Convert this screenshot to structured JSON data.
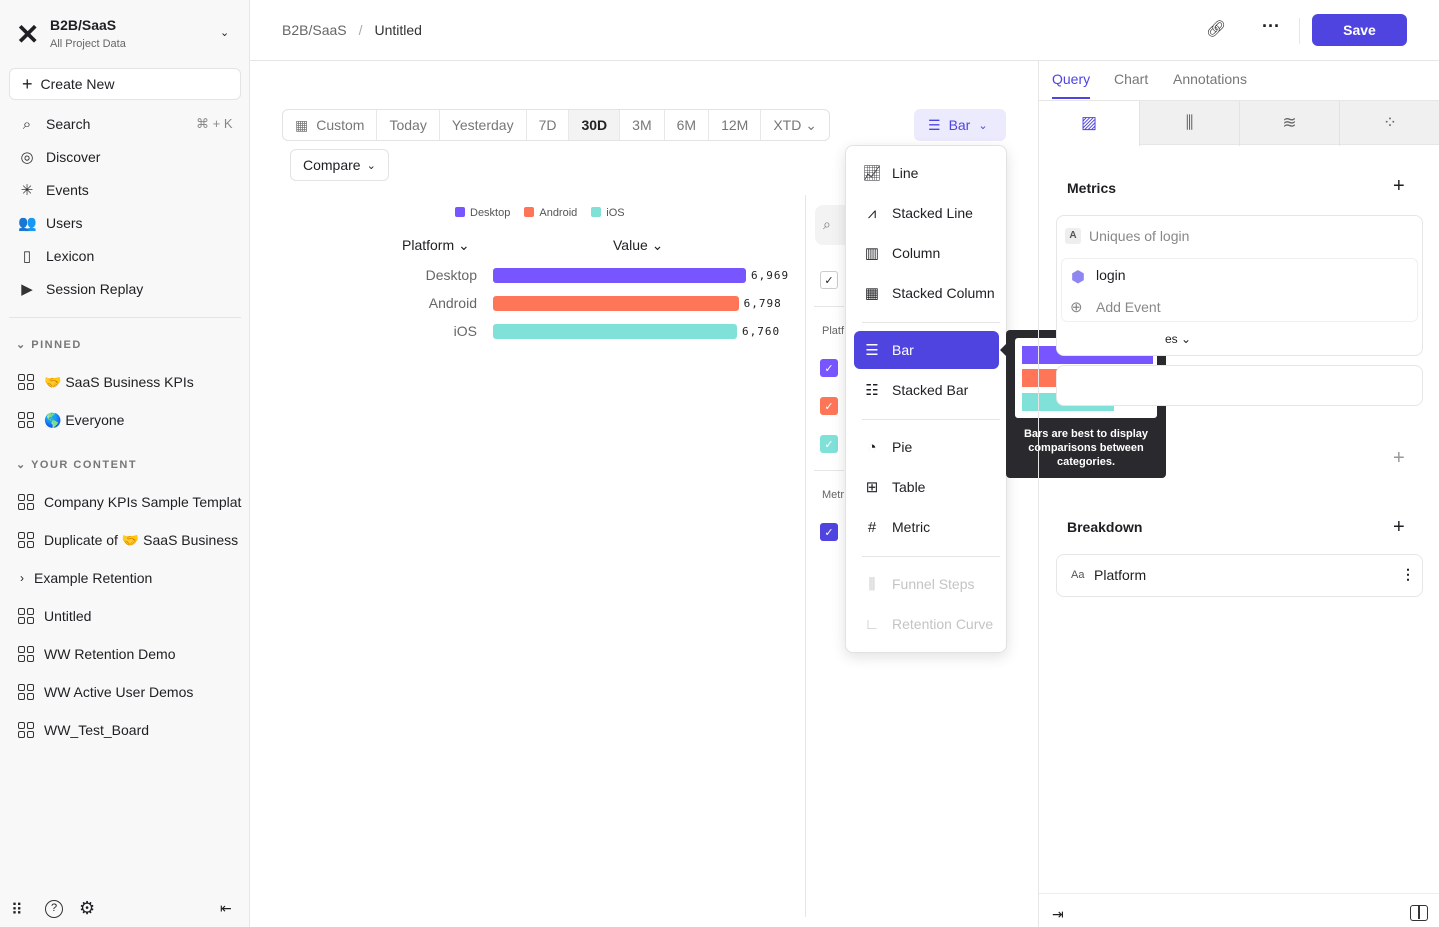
{
  "sidebar": {
    "project": "B2B/SaaS",
    "subtitle": "All Project Data",
    "create_new": "Create New",
    "nav": [
      {
        "label": "Search",
        "shortcut": "⌘ + K",
        "icon": "search-icon"
      },
      {
        "label": "Discover",
        "icon": "compass-icon"
      },
      {
        "label": "Events",
        "icon": "sparkle-icon"
      },
      {
        "label": "Users",
        "icon": "users-icon"
      },
      {
        "label": "Lexicon",
        "icon": "book-icon"
      },
      {
        "label": "Session Replay",
        "icon": "replay-icon"
      }
    ],
    "pinned_title": "PINNED",
    "pinned": [
      {
        "emoji": "🤝",
        "label": "SaaS Business KPIs"
      },
      {
        "emoji": "🌎",
        "label": "Everyone"
      }
    ],
    "content_title": "YOUR CONTENT",
    "content": [
      {
        "label": "Company KPIs Sample Templat"
      },
      {
        "label": "Duplicate of",
        "emoji": "🤝",
        "suffix": "SaaS Business"
      },
      {
        "label": "Example Retention",
        "type": "folder"
      },
      {
        "label": "Untitled"
      },
      {
        "label": "WW Retention Demo"
      },
      {
        "label": "WW Active User Demos"
      },
      {
        "label": "WW_Test_Board"
      }
    ]
  },
  "header": {
    "breadcrumb": [
      "B2B/SaaS",
      "Untitled"
    ],
    "save": "Save",
    "accent": "#4f44e0"
  },
  "toolbar": {
    "ranges": [
      "Custom",
      "Today",
      "Yesterday",
      "7D",
      "30D",
      "3M",
      "6M",
      "12M",
      "XTD"
    ],
    "selected": "30D",
    "compare": "Compare",
    "chart_type": "Bar"
  },
  "chart_data": {
    "type": "bar",
    "orientation": "horizontal",
    "legend": [
      "Desktop",
      "Android",
      "iOS"
    ],
    "legend_placement": "top",
    "col_headers": [
      "Platform",
      "Value"
    ],
    "categories": [
      "Desktop",
      "Android",
      "iOS"
    ],
    "values": [
      6969,
      6798,
      6760
    ],
    "value_labels": [
      "6,969",
      "6,798",
      "6,760"
    ],
    "colors": [
      "#7856ff",
      "#ff7557",
      "#80e1d9"
    ]
  },
  "side_panel": {
    "platform_label": "Platf",
    "metric_label": "Metr"
  },
  "menu": {
    "items": [
      {
        "label": "Line",
        "icon": "line-chart-icon"
      },
      {
        "label": "Stacked Line",
        "icon": "stacked-line-icon"
      },
      {
        "label": "Column",
        "icon": "column-chart-icon"
      },
      {
        "label": "Stacked Column",
        "icon": "stacked-column-icon"
      },
      {
        "label": "Bar",
        "icon": "bar-chart-icon",
        "selected": true
      },
      {
        "label": "Stacked Bar",
        "icon": "stacked-bar-icon"
      },
      {
        "label": "Pie",
        "icon": "pie-chart-icon"
      },
      {
        "label": "Table",
        "icon": "table-icon"
      },
      {
        "label": "Metric",
        "icon": "hash-icon"
      },
      {
        "label": "Funnel Steps",
        "icon": "funnel-icon",
        "disabled": true
      },
      {
        "label": "Retention Curve",
        "icon": "retention-icon",
        "disabled": true
      }
    ],
    "tooltip": "Bars are best to display comparisons between categories."
  },
  "right": {
    "tabs": [
      "Query",
      "Chart",
      "Annotations"
    ],
    "active_tab": "Query",
    "metrics_title": "Metrics",
    "metric_letter": "A",
    "metric_name": "Uniques of login",
    "event": "login",
    "add_event": "Add Event",
    "partial_text": "es",
    "breakdown_title": "Breakdown",
    "breakdown_type": "Aa",
    "breakdown": "Platform"
  }
}
